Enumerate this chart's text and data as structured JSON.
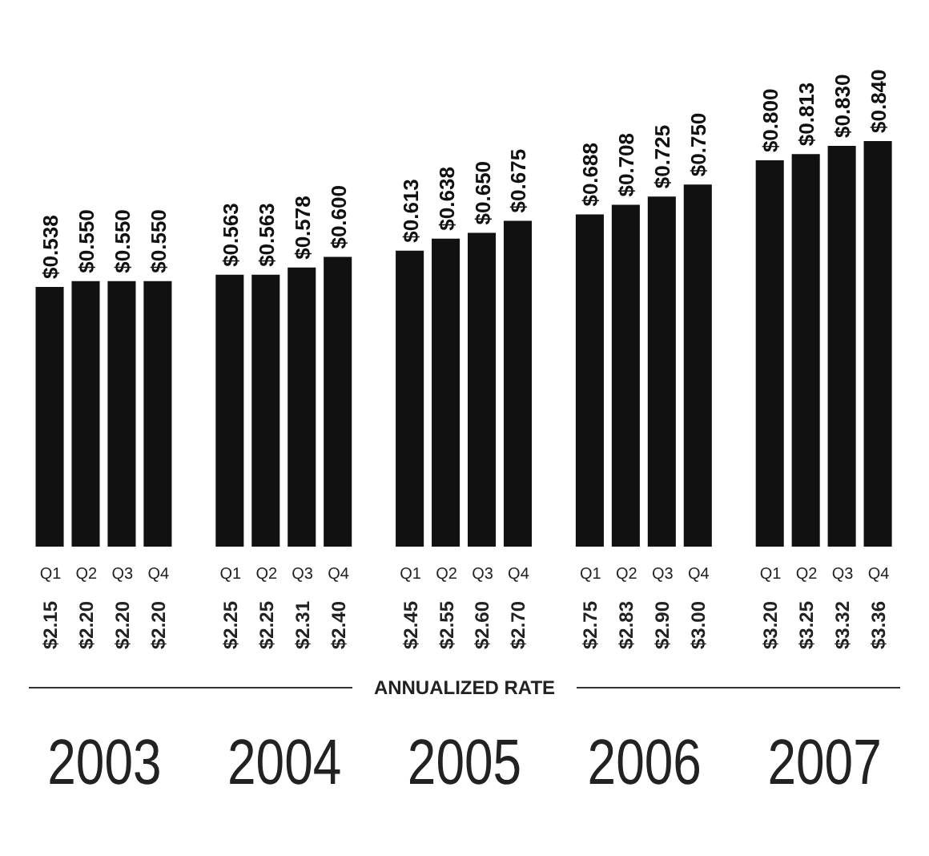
{
  "chart_data": {
    "type": "bar",
    "categories": [
      "Q1",
      "Q2",
      "Q3",
      "Q4",
      "Q1",
      "Q2",
      "Q3",
      "Q4",
      "Q1",
      "Q2",
      "Q3",
      "Q4",
      "Q1",
      "Q2",
      "Q3",
      "Q4",
      "Q1",
      "Q2",
      "Q3",
      "Q4"
    ],
    "values": [
      0.538,
      0.55,
      0.55,
      0.55,
      0.563,
      0.563,
      0.578,
      0.6,
      0.613,
      0.638,
      0.65,
      0.675,
      0.688,
      0.708,
      0.725,
      0.75,
      0.8,
      0.813,
      0.83,
      0.84
    ],
    "value_labels": [
      "$0.538",
      "$0.550",
      "$0.550",
      "$0.550",
      "$0.563",
      "$0.563",
      "$0.578",
      "$0.600",
      "$0.613",
      "$0.638",
      "$0.650",
      "$0.675",
      "$0.688",
      "$0.708",
      "$0.725",
      "$0.750",
      "$0.800",
      "$0.813",
      "$0.830",
      "$0.840"
    ],
    "color": "#111111",
    "annotations": [
      "$2.15",
      "$2.20",
      "$2.20",
      "$2.20",
      "$2.25",
      "$2.25",
      "$2.31",
      "$2.40",
      "$2.45",
      "$2.55",
      "$2.60",
      "$2.70",
      "$2.75",
      "$2.83",
      "$2.90",
      "$3.00",
      "$3.20",
      "$3.25",
      "$3.32",
      "$3.36",
      "ANNUALIZED RATE",
      "2003",
      "2004",
      "2005",
      "2006",
      "2007"
    ]
  }
}
